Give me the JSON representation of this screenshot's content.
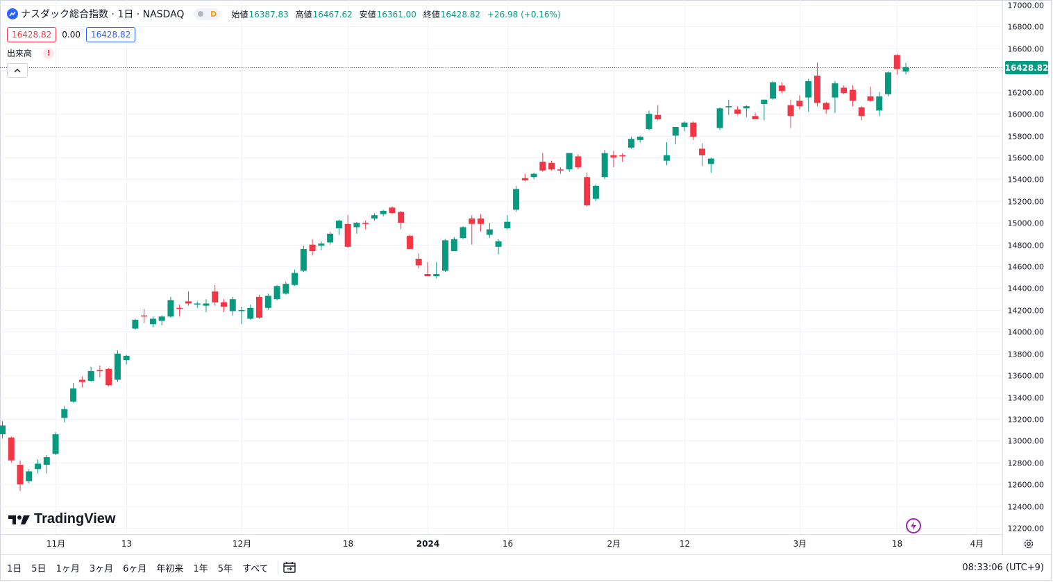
{
  "legend": {
    "symbol_name": "ナスダック総合指数 · 1日 · NASDAQ",
    "delay_badge": "D",
    "open_label": "始値",
    "open_value": "16387.83",
    "high_label": "高値",
    "high_value": "16467.62",
    "low_label": "安値",
    "low_value": "16361.00",
    "close_label": "終値",
    "close_value": "16428.82",
    "change": "+26.98 (+0.16%)"
  },
  "trade": {
    "sell_price": "16428.82",
    "spread": "0.00",
    "buy_price": "16428.82"
  },
  "volume": {
    "label": "出来高",
    "warning": "!"
  },
  "last_price_label": "16428.82",
  "brand": "TradingView",
  "range_buttons": [
    "1日",
    "5日",
    "1ヶ月",
    "3ヶ月",
    "6ヶ月",
    "年初来",
    "1年",
    "5年",
    "すべて"
  ],
  "clock": "08:33:06 (UTC+9)",
  "colors": {
    "up": "#089981",
    "down": "#f23645",
    "accent": "#2962ff"
  },
  "icons": [
    "symbol-logo-icon",
    "chevron-up-icon",
    "tradingview-logo-icon",
    "lightning-icon",
    "gear-icon",
    "date-range-icon"
  ],
  "chart_data": {
    "type": "candlestick",
    "y_axis": {
      "ticks": [
        17000,
        16800,
        16600,
        16400,
        16200,
        16000,
        15800,
        15600,
        15400,
        15200,
        15000,
        14800,
        14600,
        14400,
        14200,
        14000,
        13800,
        13600,
        13400,
        13200,
        13000,
        12800,
        12600,
        12400,
        12200
      ],
      "tick_labels": [
        "17000.00",
        "16800.00",
        "16600.00",
        "16400.00",
        "16200.00",
        "16000.00",
        "15800.00",
        "15600.00",
        "15400.00",
        "15200.00",
        "15000.00",
        "14800.00",
        "14600.00",
        "14400.00",
        "14200.00",
        "14000.00",
        "13800.00",
        "13600.00",
        "13400.00",
        "13200.00",
        "13000.00",
        "12800.00",
        "12600.00",
        "12400.00",
        "12200.00"
      ],
      "ylim": [
        12150,
        17000
      ]
    },
    "x_axis": {
      "tick_labels": [
        {
          "label": "11月",
          "index": 6
        },
        {
          "label": "13",
          "index": 14
        },
        {
          "label": "12月",
          "index": 27
        },
        {
          "label": "18",
          "index": 39
        },
        {
          "label": "2024",
          "index": 48
        },
        {
          "label": "16",
          "index": 57
        },
        {
          "label": "2月",
          "index": 69
        },
        {
          "label": "12",
          "index": 77
        },
        {
          "label": "3月",
          "index": 90
        },
        {
          "label": "18",
          "index": 101
        },
        {
          "label": "4月",
          "index": 110
        }
      ]
    },
    "candles": [
      {
        "o": 13060,
        "h": 13180,
        "l": 13020,
        "c": 13140
      },
      {
        "o": 13030,
        "h": 13040,
        "l": 12800,
        "c": 12820
      },
      {
        "o": 12780,
        "h": 12820,
        "l": 12540,
        "c": 12600
      },
      {
        "o": 12630,
        "h": 12740,
        "l": 12610,
        "c": 12720
      },
      {
        "o": 12740,
        "h": 12830,
        "l": 12700,
        "c": 12790
      },
      {
        "o": 12780,
        "h": 12870,
        "l": 12700,
        "c": 12850
      },
      {
        "o": 12880,
        "h": 13080,
        "l": 12870,
        "c": 13060
      },
      {
        "o": 13210,
        "h": 13320,
        "l": 13170,
        "c": 13290
      },
      {
        "o": 13360,
        "h": 13530,
        "l": 13350,
        "c": 13480
      },
      {
        "o": 13560,
        "h": 13590,
        "l": 13490,
        "c": 13540
      },
      {
        "o": 13550,
        "h": 13680,
        "l": 13540,
        "c": 13640
      },
      {
        "o": 13650,
        "h": 13690,
        "l": 13580,
        "c": 13640
      },
      {
        "o": 13660,
        "h": 13670,
        "l": 13500,
        "c": 13510
      },
      {
        "o": 13560,
        "h": 13830,
        "l": 13540,
        "c": 13800
      },
      {
        "o": 13740,
        "h": 13790,
        "l": 13700,
        "c": 13780
      },
      {
        "o": 14030,
        "h": 14120,
        "l": 14020,
        "c": 14110
      },
      {
        "o": 14150,
        "h": 14210,
        "l": 14080,
        "c": 14140
      },
      {
        "o": 14070,
        "h": 14140,
        "l": 14040,
        "c": 14120
      },
      {
        "o": 14100,
        "h": 14150,
        "l": 14060,
        "c": 14140
      },
      {
        "o": 14140,
        "h": 14320,
        "l": 14130,
        "c": 14290
      },
      {
        "o": 14220,
        "h": 14250,
        "l": 14140,
        "c": 14210
      },
      {
        "o": 14280,
        "h": 14370,
        "l": 14240,
        "c": 14260
      },
      {
        "o": 14250,
        "h": 14280,
        "l": 14220,
        "c": 14260
      },
      {
        "o": 14240,
        "h": 14300,
        "l": 14180,
        "c": 14260
      },
      {
        "o": 14370,
        "h": 14430,
        "l": 14240,
        "c": 14270
      },
      {
        "o": 14270,
        "h": 14300,
        "l": 14180,
        "c": 14230
      },
      {
        "o": 14190,
        "h": 14320,
        "l": 14150,
        "c": 14300
      },
      {
        "o": 14190,
        "h": 14230,
        "l": 14070,
        "c": 14200
      },
      {
        "o": 14120,
        "h": 14250,
        "l": 14110,
        "c": 14220
      },
      {
        "o": 14320,
        "h": 14340,
        "l": 14120,
        "c": 14130
      },
      {
        "o": 14220,
        "h": 14350,
        "l": 14200,
        "c": 14330
      },
      {
        "o": 14300,
        "h": 14430,
        "l": 14290,
        "c": 14420
      },
      {
        "o": 14350,
        "h": 14460,
        "l": 14340,
        "c": 14440
      },
      {
        "o": 14430,
        "h": 14570,
        "l": 14420,
        "c": 14540
      },
      {
        "o": 14560,
        "h": 14790,
        "l": 14550,
        "c": 14760
      },
      {
        "o": 14800,
        "h": 14850,
        "l": 14700,
        "c": 14740
      },
      {
        "o": 14790,
        "h": 14830,
        "l": 14750,
        "c": 14810
      },
      {
        "o": 14820,
        "h": 14920,
        "l": 14800,
        "c": 14900
      },
      {
        "o": 14950,
        "h": 15030,
        "l": 14890,
        "c": 15020
      },
      {
        "o": 14990,
        "h": 15070,
        "l": 14770,
        "c": 14780
      },
      {
        "o": 14960,
        "h": 15010,
        "l": 14900,
        "c": 15000
      },
      {
        "o": 15000,
        "h": 15020,
        "l": 14940,
        "c": 14990
      },
      {
        "o": 15040,
        "h": 15090,
        "l": 15020,
        "c": 15070
      },
      {
        "o": 15080,
        "h": 15120,
        "l": 15060,
        "c": 15110
      },
      {
        "o": 15140,
        "h": 15150,
        "l": 15080,
        "c": 15090
      },
      {
        "o": 15100,
        "h": 15110,
        "l": 14940,
        "c": 15000
      },
      {
        "o": 14880,
        "h": 14890,
        "l": 14760,
        "c": 14760
      },
      {
        "o": 14670,
        "h": 14720,
        "l": 14580,
        "c": 14610
      },
      {
        "o": 14530,
        "h": 14640,
        "l": 14510,
        "c": 14510
      },
      {
        "o": 14510,
        "h": 14640,
        "l": 14490,
        "c": 14530
      },
      {
        "o": 14560,
        "h": 14850,
        "l": 14550,
        "c": 14840
      },
      {
        "o": 14740,
        "h": 14870,
        "l": 14740,
        "c": 14850
      },
      {
        "o": 14860,
        "h": 14970,
        "l": 14850,
        "c": 14960
      },
      {
        "o": 15040,
        "h": 15070,
        "l": 14800,
        "c": 14990
      },
      {
        "o": 15040,
        "h": 15080,
        "l": 14920,
        "c": 14990
      },
      {
        "o": 14890,
        "h": 15000,
        "l": 14860,
        "c": 14940
      },
      {
        "o": 14780,
        "h": 14850,
        "l": 14710,
        "c": 14830
      },
      {
        "o": 14950,
        "h": 15070,
        "l": 14940,
        "c": 15010
      },
      {
        "o": 15120,
        "h": 15340,
        "l": 15100,
        "c": 15310
      },
      {
        "o": 15410,
        "h": 15450,
        "l": 15380,
        "c": 15390
      },
      {
        "o": 15420,
        "h": 15460,
        "l": 15400,
        "c": 15450
      },
      {
        "o": 15560,
        "h": 15640,
        "l": 15470,
        "c": 15480
      },
      {
        "o": 15550,
        "h": 15570,
        "l": 15480,
        "c": 15490
      },
      {
        "o": 15490,
        "h": 15510,
        "l": 15450,
        "c": 15480
      },
      {
        "o": 15490,
        "h": 15640,
        "l": 15470,
        "c": 15640
      },
      {
        "o": 15610,
        "h": 15630,
        "l": 15490,
        "c": 15510
      },
      {
        "o": 15420,
        "h": 15460,
        "l": 15150,
        "c": 15160
      },
      {
        "o": 15220,
        "h": 15350,
        "l": 15200,
        "c": 15340
      },
      {
        "o": 15420,
        "h": 15670,
        "l": 15400,
        "c": 15640
      },
      {
        "o": 15620,
        "h": 15660,
        "l": 15510,
        "c": 15600
      },
      {
        "o": 15620,
        "h": 15640,
        "l": 15560,
        "c": 15610
      },
      {
        "o": 15690,
        "h": 15790,
        "l": 15680,
        "c": 15770
      },
      {
        "o": 15760,
        "h": 15800,
        "l": 15740,
        "c": 15790
      },
      {
        "o": 15860,
        "h": 16030,
        "l": 15850,
        "c": 16000
      },
      {
        "o": 15990,
        "h": 16080,
        "l": 15940,
        "c": 15950
      },
      {
        "o": 15570,
        "h": 15740,
        "l": 15530,
        "c": 15620
      },
      {
        "o": 15800,
        "h": 15880,
        "l": 15720,
        "c": 15880
      },
      {
        "o": 15880,
        "h": 15930,
        "l": 15840,
        "c": 15920
      },
      {
        "o": 15920,
        "h": 15930,
        "l": 15760,
        "c": 15790
      },
      {
        "o": 15680,
        "h": 15730,
        "l": 15520,
        "c": 15620
      },
      {
        "o": 15540,
        "h": 15600,
        "l": 15460,
        "c": 15590
      },
      {
        "o": 15870,
        "h": 16060,
        "l": 15850,
        "c": 16050
      },
      {
        "o": 16060,
        "h": 16130,
        "l": 15990,
        "c": 16070
      },
      {
        "o": 16040,
        "h": 16070,
        "l": 15990,
        "c": 16000
      },
      {
        "o": 16050,
        "h": 16080,
        "l": 15970,
        "c": 16070
      },
      {
        "o": 15980,
        "h": 16010,
        "l": 15950,
        "c": 15950
      },
      {
        "o": 16090,
        "h": 16130,
        "l": 15940,
        "c": 16130
      },
      {
        "o": 16140,
        "h": 16300,
        "l": 16130,
        "c": 16290
      },
      {
        "o": 16260,
        "h": 16290,
        "l": 16190,
        "c": 16210
      },
      {
        "o": 16080,
        "h": 16130,
        "l": 15870,
        "c": 15980
      },
      {
        "o": 16120,
        "h": 16170,
        "l": 16040,
        "c": 16070
      },
      {
        "o": 16150,
        "h": 16320,
        "l": 16020,
        "c": 16300
      },
      {
        "o": 16350,
        "h": 16470,
        "l": 16070,
        "c": 16100
      },
      {
        "o": 16100,
        "h": 16110,
        "l": 16000,
        "c": 16040
      },
      {
        "o": 16150,
        "h": 16300,
        "l": 16010,
        "c": 16280
      },
      {
        "o": 16240,
        "h": 16260,
        "l": 16180,
        "c": 16190
      },
      {
        "o": 16220,
        "h": 16260,
        "l": 16070,
        "c": 16120
      },
      {
        "o": 16060,
        "h": 16070,
        "l": 15940,
        "c": 15980
      },
      {
        "o": 16160,
        "h": 16250,
        "l": 16110,
        "c": 16120
      },
      {
        "o": 16030,
        "h": 16200,
        "l": 15980,
        "c": 16160
      },
      {
        "o": 16180,
        "h": 16390,
        "l": 16160,
        "c": 16380
      },
      {
        "o": 16540,
        "h": 16550,
        "l": 16360,
        "c": 16410
      },
      {
        "o": 16388,
        "h": 16468,
        "l": 16361,
        "c": 16429
      }
    ]
  }
}
